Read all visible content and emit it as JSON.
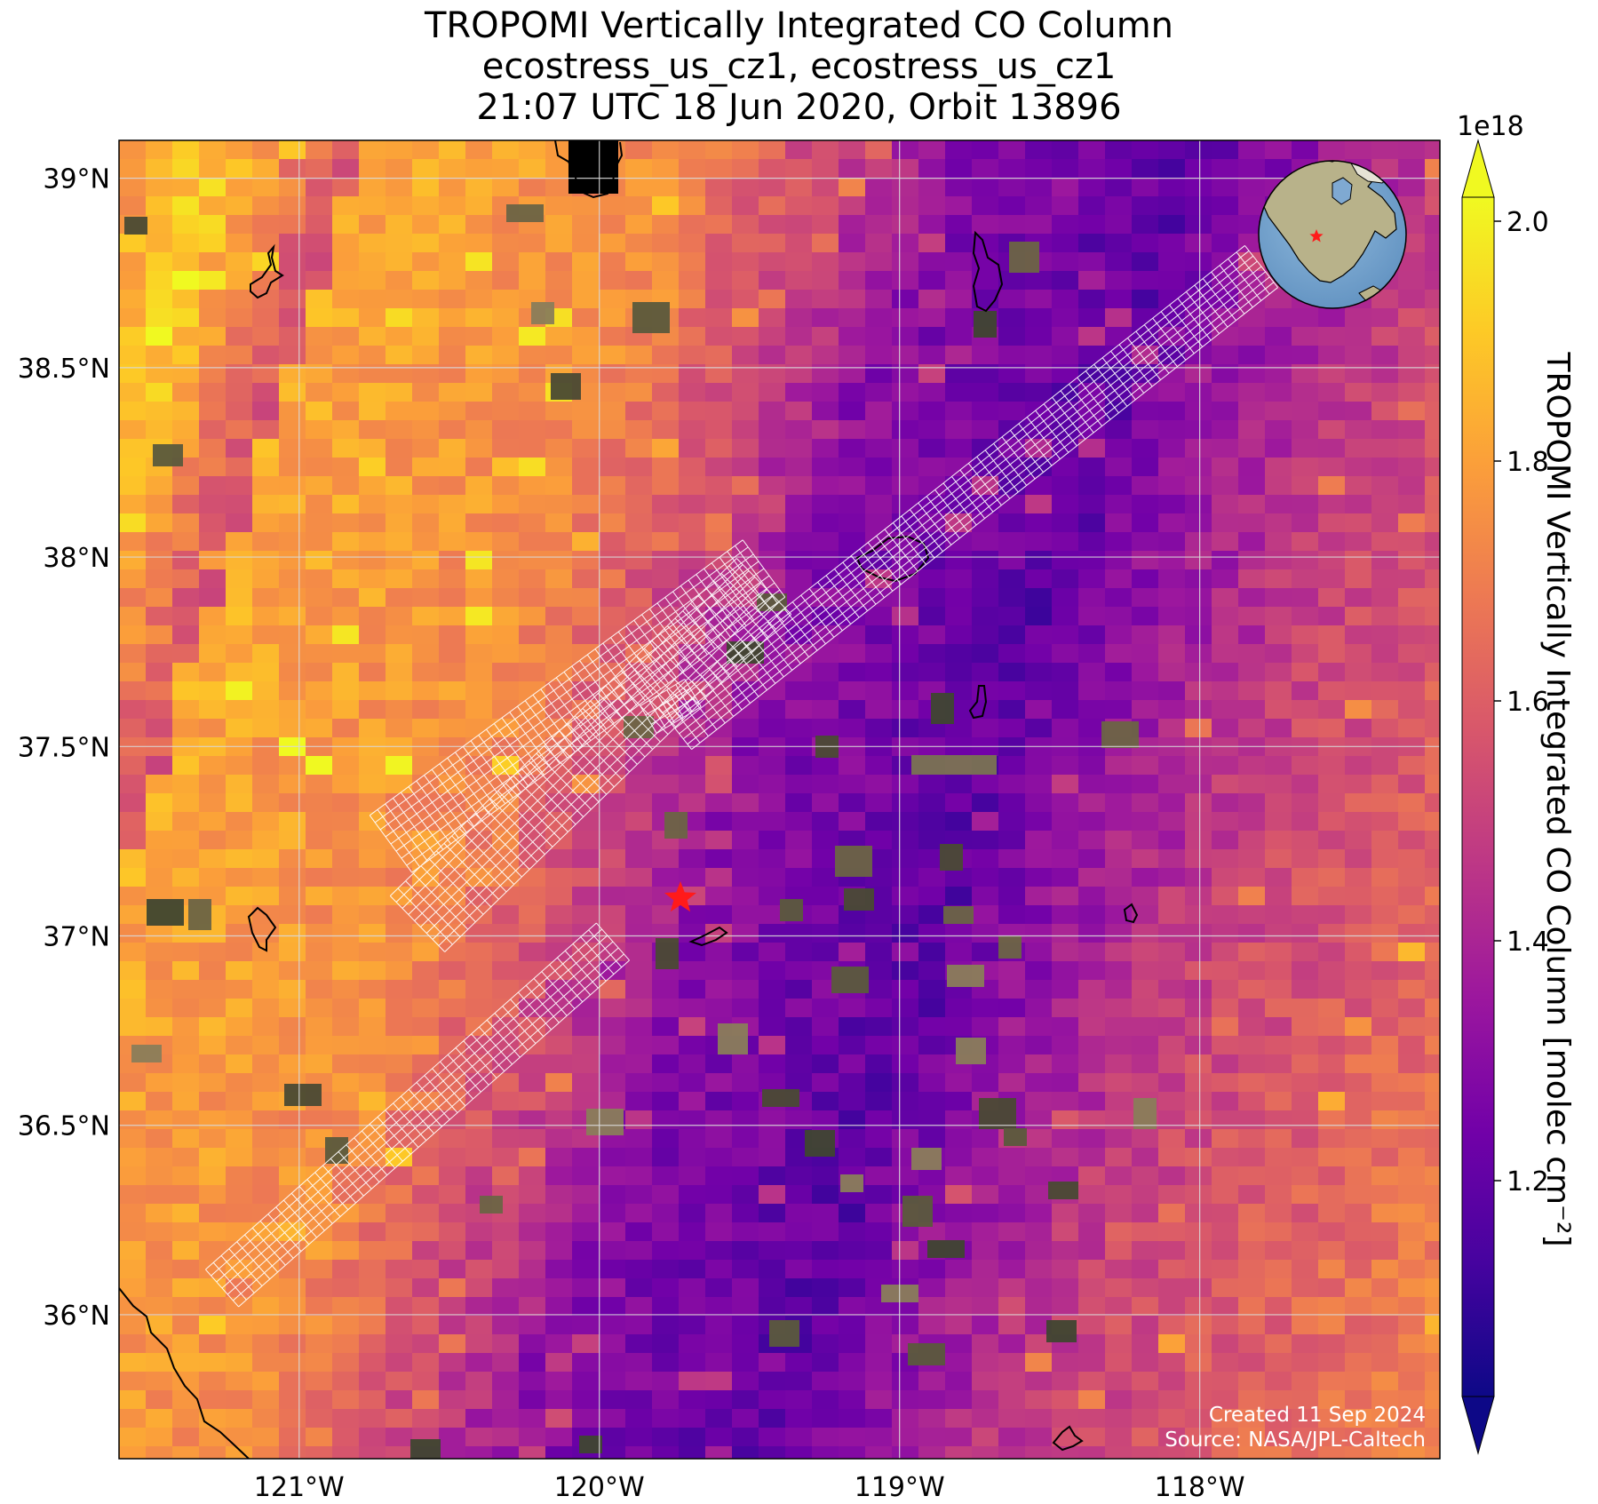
{
  "title": {
    "line1": "TROPOMI Vertically Integrated CO Column",
    "line2": "ecostress_us_cz1, ecostress_us_cz1",
    "line3": "21:07 UTC 18 Jun 2020, Orbit 13896"
  },
  "map": {
    "lon_range": [
      -121.6,
      -117.2
    ],
    "lat_range": [
      35.62,
      39.1
    ],
    "lon_ticks": [
      -121,
      -120,
      -119,
      -118
    ],
    "lon_tick_labels": [
      "121°W",
      "120°W",
      "119°W",
      "118°W"
    ],
    "lat_ticks": [
      36,
      36.5,
      37,
      37.5,
      38,
      38.5,
      39
    ],
    "lat_tick_labels": [
      "36°N",
      "36.5°N",
      "37°N",
      "37.5°N",
      "38°N",
      "38.5°N",
      "39°N"
    ],
    "grid": true,
    "target_marker": {
      "lon": -119.73,
      "lat": 37.1,
      "color": "#ff1a1a"
    }
  },
  "colorbar": {
    "label": "TROPOMI Vertically Integrated CO Column [molec cm⁻²]",
    "exponent": "1e18",
    "range": [
      1.02,
      2.02
    ],
    "ticks": [
      1.2,
      1.4,
      1.6,
      1.8,
      2.0
    ],
    "tick_labels": [
      "1.2",
      "1.4",
      "1.6",
      "1.8",
      "2.0"
    ],
    "colormap": "plasma",
    "extend": "both"
  },
  "inset_globe": {
    "marker_color": "#ff1a1a"
  },
  "credits": {
    "line1": "Created 11 Sep 2024",
    "line2": "Source: NASA/JPL-Caltech"
  },
  "colors": {
    "plasma": [
      "#0d0887",
      "#46039f",
      "#7201a8",
      "#9c179e",
      "#bd3786",
      "#d8576b",
      "#ed7953",
      "#fb9f3a",
      "#fdca26",
      "#f0f921"
    ],
    "grid": "#d9d9d9",
    "swath_outline": "#ffffff"
  }
}
